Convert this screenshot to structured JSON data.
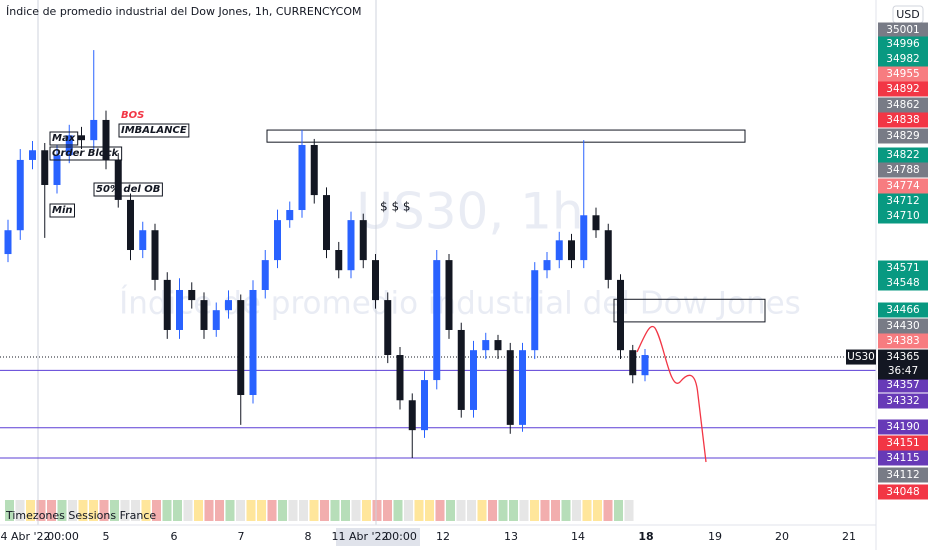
{
  "chart_data": {
    "type": "candlestick",
    "title": "Índice de promedio industrial del Dow Jones, 1h, CURRENCYCOM",
    "watermark_symbol": "US30, 1h",
    "watermark_name": "Índice de promedio industrial del Dow Jones",
    "currency": "USD",
    "symbol": "US30",
    "current_price": 34365,
    "countdown": "36:47",
    "indicator": "Timezones Sessions France",
    "up_color": "#2962ff",
    "down_color": "#131722",
    "ylim": [
      34016,
      35249
    ],
    "categories": [
      "04 Abr '22",
      "00:00",
      "5",
      "6",
      "7",
      "8",
      "11 Abr '22",
      "00:00",
      "12",
      "13",
      "14",
      "18",
      "19",
      "20",
      "21"
    ],
    "open": [
      34620,
      34679,
      34853,
      34877,
      34791,
      34865,
      34914,
      34902,
      34952,
      34853,
      34754,
      34630,
      34679,
      34556,
      34432,
      34531,
      34506,
      34432,
      34481,
      34506,
      34271,
      34531,
      34605,
      34704,
      34729,
      34890,
      34766,
      34630,
      34580,
      34704,
      34605,
      34506,
      34370,
      34258,
      34184,
      34308,
      34605,
      34432,
      34234,
      34382,
      34407,
      34382,
      34197,
      34382,
      34580,
      34605,
      34654,
      34605,
      34716,
      34679,
      34556,
      34382,
      34320
    ],
    "high": [
      34705,
      34880,
      34900,
      34895,
      34890,
      34940,
      34935,
      35125,
      34975,
      34870,
      34770,
      34700,
      34695,
      34575,
      34560,
      34550,
      34525,
      34500,
      34530,
      34520,
      34555,
      34630,
      34730,
      34750,
      34927,
      34905,
      34785,
      34650,
      34725,
      34720,
      34620,
      34525,
      34390,
      34275,
      34330,
      34630,
      34620,
      34450,
      34405,
      34425,
      34420,
      34400,
      34400,
      34600,
      34625,
      34675,
      34670,
      34902,
      34735,
      34695,
      34570,
      34395,
      34385
    ],
    "low": [
      34600,
      34655,
      34830,
      34660,
      34770,
      34845,
      34880,
      34880,
      34830,
      34735,
      34605,
      34610,
      34530,
      34410,
      34410,
      34485,
      34410,
      34415,
      34460,
      34197,
      34250,
      34510,
      34585,
      34685,
      34710,
      34745,
      34610,
      34560,
      34560,
      34585,
      34485,
      34350,
      34235,
      34115,
      34165,
      34285,
      34410,
      34215,
      34215,
      34360,
      34360,
      34175,
      34180,
      34360,
      34560,
      34585,
      34585,
      34585,
      34660,
      34535,
      34360,
      34300,
      34305
    ],
    "close": [
      34679,
      34853,
      34877,
      34791,
      34865,
      34914,
      34902,
      34952,
      34853,
      34754,
      34630,
      34679,
      34556,
      34432,
      34531,
      34506,
      34432,
      34481,
      34506,
      34271,
      34531,
      34605,
      34704,
      34729,
      34890,
      34766,
      34630,
      34580,
      34704,
      34605,
      34506,
      34370,
      34258,
      34184,
      34308,
      34605,
      34432,
      34234,
      34382,
      34407,
      34382,
      34197,
      34382,
      34580,
      34605,
      34654,
      34605,
      34716,
      34679,
      34556,
      34382,
      34320,
      34370
    ],
    "hlines": [
      34332,
      34190,
      34115
    ],
    "hline_color": "#5b3fd6",
    "zones": [
      {
        "top": 34927,
        "bottom": 34897
      },
      {
        "top": 34508,
        "bottom": 34452
      }
    ],
    "annotations": [
      "Max",
      "Order Block",
      "BOS",
      "IMBALANCE",
      "50% del OB",
      "Min",
      "$ $ $"
    ],
    "price_labels": [
      35001,
      34996,
      34982,
      34955,
      34892,
      34862,
      34838,
      34829,
      34822,
      34788,
      34774,
      34712,
      34710,
      34571,
      34548,
      34466,
      34430,
      34383,
      34357,
      34332,
      34190,
      34151,
      34115,
      34112,
      34048
    ],
    "price_label_colors": [
      "#787b86",
      "#089981",
      "#089981",
      "#f77c80",
      "#f23645",
      "#787b86",
      "#f23645",
      "#787b86",
      "#089981",
      "#787b86",
      "#f77c80",
      "#089981",
      "#089981",
      "#089981",
      "#089981",
      "#089981",
      "#787b86",
      "#f77c80",
      "#673ab7",
      "#673ab7",
      "#673ab7",
      "#f23645",
      "#673ab7",
      "#787b86",
      "#f23645"
    ]
  }
}
